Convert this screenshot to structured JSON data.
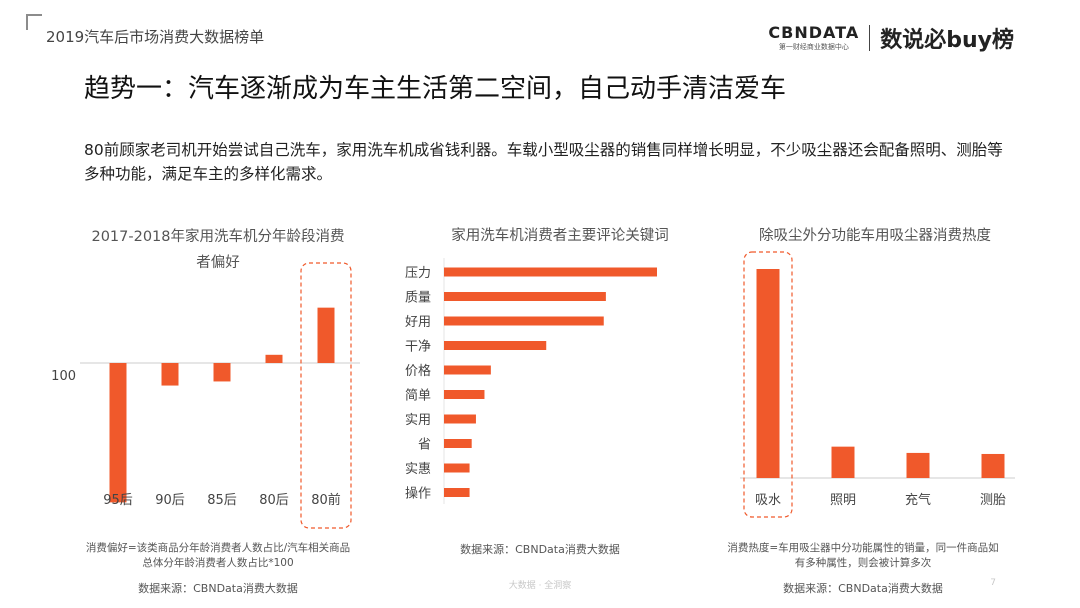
{
  "header": {
    "deck_title": "2019汽车后市场消费大数据榜单",
    "brand_logo": "CBNDATA",
    "brand_sub": "第一财经商业数据中心",
    "brand_name": "数说必buy榜"
  },
  "heading": "趋势一：汽车逐渐成为车主生活第二空间，自己动手清洁爱车",
  "intro": "80前顾家老司机开始尝试自己洗车，家用洗车机成省钱利器。车载小型吸尘器的销售同样增长明显，不少吸尘器还会配备照明、测胎等多种功能，满足车主的多样化需求。",
  "colors": {
    "bar": "#f0592b",
    "highlight_border": "#f0592b",
    "axis": "#cccccc"
  },
  "chart1_note": "消费偏好=该类商品分年龄消费者人数占比/汽车相关商品总体分年龄消费者人数占比*100",
  "chart1_source": "数据来源：CBNData消费大数据",
  "chart2_source": "数据来源：CBNData消费大数据",
  "chart3_note": "消费热度=车用吸尘器中分功能属性的销量，同一件商品如有多种属性，则会被计算多次",
  "chart3_source": "数据来源：CBNData消费大数据",
  "footer": {
    "watermark": "大数据 · 全洞察",
    "page": "7"
  },
  "chart_data": [
    {
      "type": "bar",
      "title": "2017-2018年家用洗车机分年龄段消费者偏好",
      "baseline": 100,
      "baseline_label": "100",
      "categories": [
        "95后",
        "90后",
        "85后",
        "80后",
        "80前"
      ],
      "values": [
        32,
        89,
        91,
        104,
        127
      ],
      "highlight": "80前"
    },
    {
      "type": "bar",
      "orientation": "horizontal",
      "title": "家用洗车机消费者主要评论关键词",
      "categories": [
        "压力",
        "质量",
        "好用",
        "干净",
        "价格",
        "简单",
        "实用",
        "省",
        "实惠",
        "操作"
      ],
      "values": [
        100,
        76,
        75,
        48,
        22,
        19,
        15,
        13,
        12,
        12
      ]
    },
    {
      "type": "bar",
      "title": "除吸尘外分功能车用吸尘器消费热度",
      "categories": [
        "吸水",
        "照明",
        "充气",
        "测胎"
      ],
      "values": [
        100,
        15,
        12,
        11.5
      ],
      "highlight": "吸水"
    }
  ]
}
